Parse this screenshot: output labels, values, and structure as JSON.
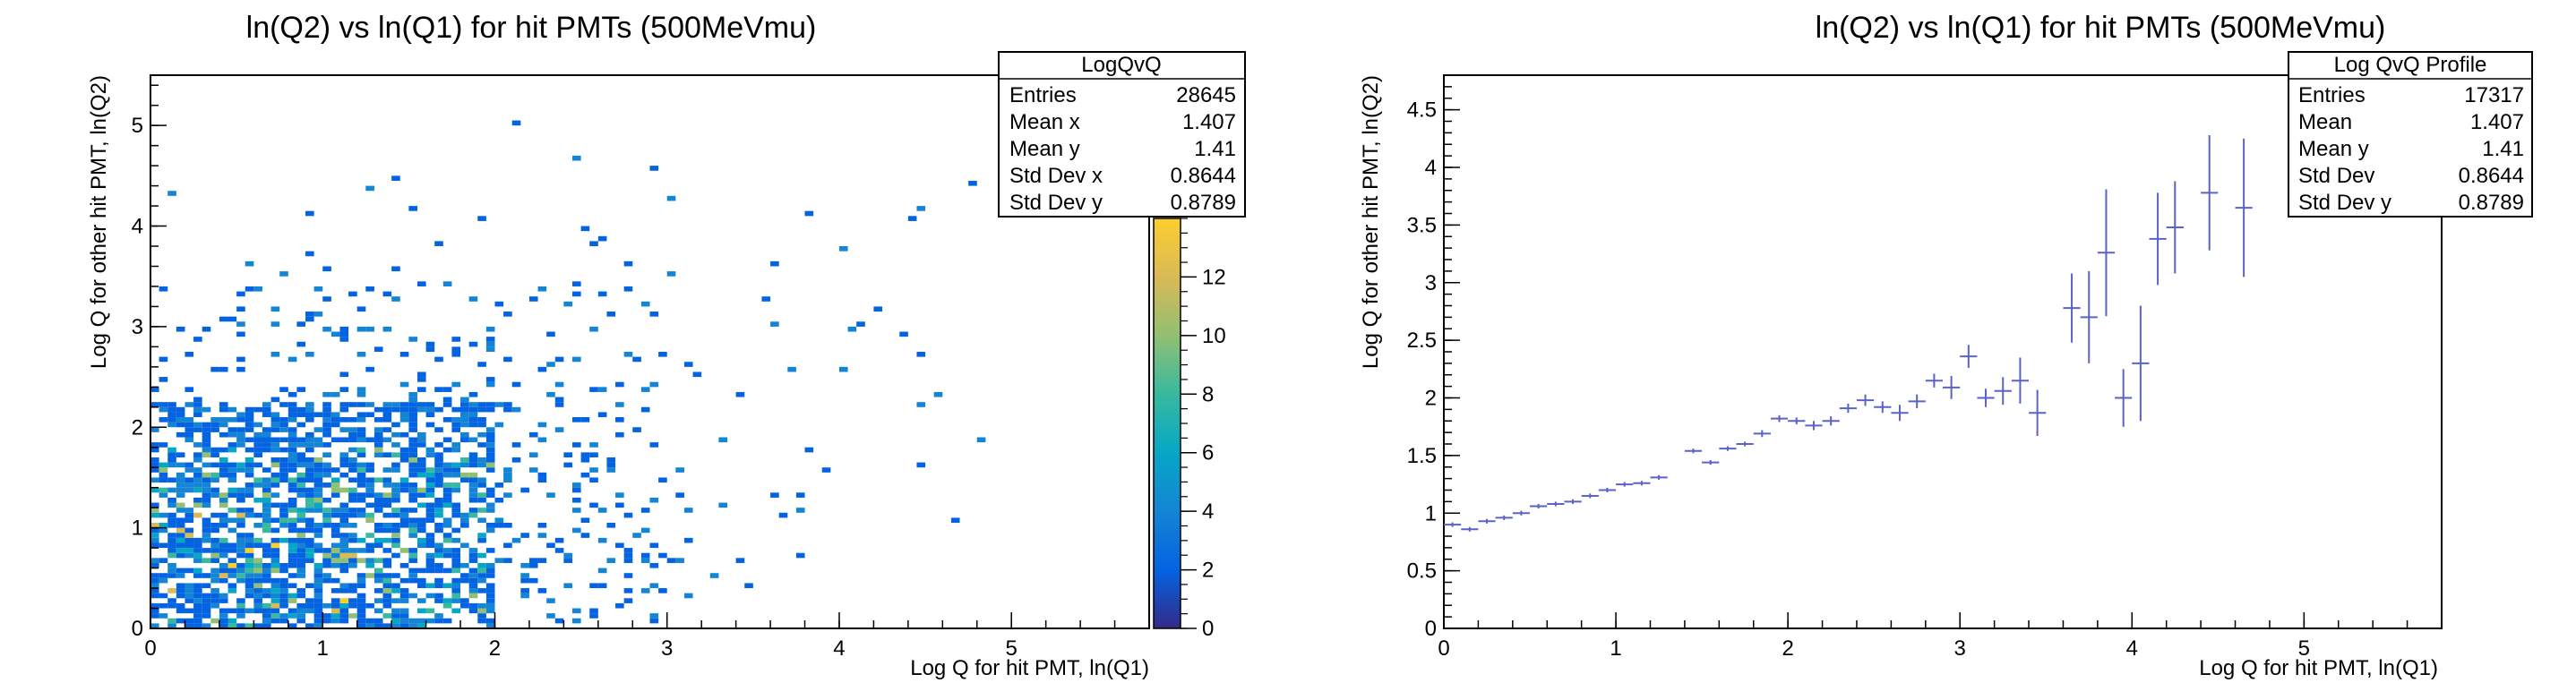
{
  "left_title": "ln(Q2) vs ln(Q1) for hit PMTs (500MeVmu)",
  "right_title": "ln(Q2) vs ln(Q1) for hit PMTs (500MeVmu)",
  "left_stats": {
    "name": "LogQvQ",
    "rows": [
      {
        "label": "Entries",
        "value": "28645"
      },
      {
        "label": "Mean x",
        "value": "1.407"
      },
      {
        "label": "Mean y",
        "value": "1.41"
      },
      {
        "label": "Std Dev x",
        "value": "0.8644"
      },
      {
        "label": "Std Dev y",
        "value": "0.8789"
      }
    ]
  },
  "right_stats": {
    "name": "Log QvQ Profile",
    "rows": [
      {
        "label": "Entries",
        "value": "17317"
      },
      {
        "label": "Mean",
        "value": "1.407"
      },
      {
        "label": "Mean y",
        "value": "1.41"
      },
      {
        "label": "Std Dev",
        "value": "0.8644"
      },
      {
        "label": "Std Dev y",
        "value": "0.8789"
      }
    ]
  },
  "colors": {
    "profile": "#5a63c8",
    "palette": [
      "#352a87",
      "#0363e1",
      "#1485d4",
      "#06a7c6",
      "#38b99e",
      "#92bf73",
      "#d9ba56",
      "#fcce2e"
    ]
  },
  "chart_data": [
    {
      "type": "heatmap",
      "title": "ln(Q2) vs ln(Q1) for hit PMTs (500MeVmu)",
      "xlabel": "Log Q for hit PMT, ln(Q1)",
      "ylabel": "Log Q for other hit PMT, ln(Q2)",
      "xlim": [
        0,
        5.8
      ],
      "ylim": [
        0,
        5.5
      ],
      "zlim": [
        0,
        14
      ],
      "x_ticks": [
        0,
        1,
        2,
        3,
        4,
        5
      ],
      "y_ticks": [
        0,
        1,
        2,
        3,
        4,
        5
      ],
      "z_ticks": [
        0,
        2,
        4,
        6,
        8,
        10,
        12
      ],
      "bin_width": 0.05,
      "bin_height": 0.05,
      "density": {
        "mean_x": 1.407,
        "mean_y": 1.41,
        "std_x": 0.8644,
        "std_y": 0.8789,
        "core_x_max": 2.0,
        "core_y_max": 2.2,
        "tail_x_max": 4.8,
        "tail_y_max": 5.0
      },
      "grid": false
    },
    {
      "type": "scatter",
      "title": "ln(Q2) vs ln(Q1) for hit PMTs (500MeVmu)",
      "xlabel": "Log Q for hit PMT, ln(Q1)",
      "ylabel": "Log Q for other hit PMT, ln(Q2)",
      "xlim": [
        0,
        5.8
      ],
      "ylim": [
        0,
        4.8
      ],
      "x_ticks": [
        0,
        1,
        2,
        3,
        4,
        5
      ],
      "y_ticks": [
        0,
        0.5,
        1,
        1.5,
        2,
        2.5,
        3,
        3.5,
        4,
        4.5
      ],
      "x_err": 0.05,
      "points": [
        {
          "x": 0.05,
          "y": 0.9,
          "e": 0.02
        },
        {
          "x": 0.15,
          "y": 0.86,
          "e": 0.02
        },
        {
          "x": 0.25,
          "y": 0.93,
          "e": 0.02
        },
        {
          "x": 0.35,
          "y": 0.96,
          "e": 0.02
        },
        {
          "x": 0.45,
          "y": 1.0,
          "e": 0.02
        },
        {
          "x": 0.55,
          "y": 1.06,
          "e": 0.02
        },
        {
          "x": 0.65,
          "y": 1.08,
          "e": 0.02
        },
        {
          "x": 0.75,
          "y": 1.1,
          "e": 0.02
        },
        {
          "x": 0.85,
          "y": 1.15,
          "e": 0.02
        },
        {
          "x": 0.95,
          "y": 1.2,
          "e": 0.02
        },
        {
          "x": 1.05,
          "y": 1.25,
          "e": 0.02
        },
        {
          "x": 1.15,
          "y": 1.26,
          "e": 0.02
        },
        {
          "x": 1.25,
          "y": 1.31,
          "e": 0.02
        },
        {
          "x": 1.45,
          "y": 1.54,
          "e": 0.02
        },
        {
          "x": 1.55,
          "y": 1.44,
          "e": 0.02
        },
        {
          "x": 1.65,
          "y": 1.56,
          "e": 0.02
        },
        {
          "x": 1.75,
          "y": 1.6,
          "e": 0.02
        },
        {
          "x": 1.85,
          "y": 1.69,
          "e": 0.03
        },
        {
          "x": 1.95,
          "y": 1.82,
          "e": 0.03
        },
        {
          "x": 2.05,
          "y": 1.8,
          "e": 0.03
        },
        {
          "x": 2.15,
          "y": 1.76,
          "e": 0.04
        },
        {
          "x": 2.25,
          "y": 1.8,
          "e": 0.04
        },
        {
          "x": 2.35,
          "y": 1.91,
          "e": 0.04
        },
        {
          "x": 2.45,
          "y": 1.98,
          "e": 0.05
        },
        {
          "x": 2.55,
          "y": 1.92,
          "e": 0.05
        },
        {
          "x": 2.65,
          "y": 1.87,
          "e": 0.07
        },
        {
          "x": 2.75,
          "y": 1.97,
          "e": 0.06
        },
        {
          "x": 2.85,
          "y": 2.15,
          "e": 0.06
        },
        {
          "x": 2.95,
          "y": 2.09,
          "e": 0.1
        },
        {
          "x": 3.05,
          "y": 2.36,
          "e": 0.1
        },
        {
          "x": 3.15,
          "y": 2.0,
          "e": 0.08
        },
        {
          "x": 3.25,
          "y": 2.06,
          "e": 0.12
        },
        {
          "x": 3.35,
          "y": 2.15,
          "e": 0.2
        },
        {
          "x": 3.45,
          "y": 1.87,
          "e": 0.2
        },
        {
          "x": 3.65,
          "y": 2.78,
          "e": 0.3
        },
        {
          "x": 3.75,
          "y": 2.7,
          "e": 0.4
        },
        {
          "x": 3.85,
          "y": 3.26,
          "e": 0.55
        },
        {
          "x": 3.95,
          "y": 2.0,
          "e": 0.25
        },
        {
          "x": 4.05,
          "y": 2.3,
          "e": 0.5
        },
        {
          "x": 4.15,
          "y": 3.38,
          "e": 0.4
        },
        {
          "x": 4.25,
          "y": 3.48,
          "e": 0.4
        },
        {
          "x": 4.45,
          "y": 3.78,
          "e": 0.5
        },
        {
          "x": 4.65,
          "y": 3.65,
          "e": 0.6
        }
      ],
      "grid": false
    }
  ]
}
